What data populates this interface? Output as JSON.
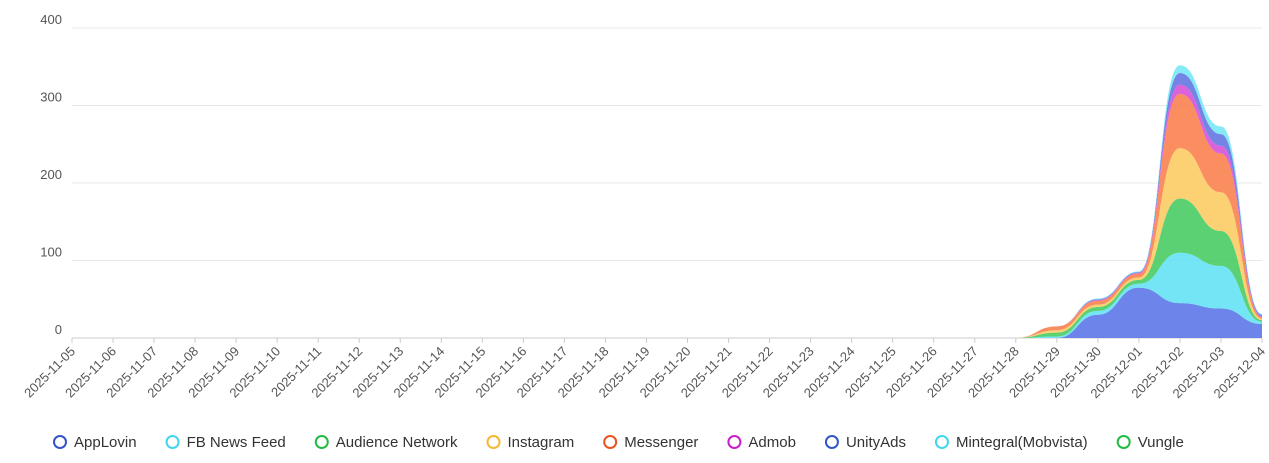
{
  "chart_data": {
    "type": "stacked-area",
    "categories": [
      "2025-11-05",
      "2025-11-06",
      "2025-11-07",
      "2025-11-08",
      "2025-11-09",
      "2025-11-10",
      "2025-11-11",
      "2025-11-12",
      "2025-11-13",
      "2025-11-14",
      "2025-11-15",
      "2025-11-16",
      "2025-11-17",
      "2025-11-18",
      "2025-11-19",
      "2025-11-20",
      "2025-11-21",
      "2025-11-22",
      "2025-11-23",
      "2025-11-24",
      "2025-11-25",
      "2025-11-26",
      "2025-11-27",
      "2025-11-28",
      "2025-11-29",
      "2025-11-30",
      "2025-12-01",
      "2025-12-02",
      "2025-12-03",
      "2025-12-04"
    ],
    "series": [
      {
        "name": "AppLovin",
        "color": "#5470e6",
        "values": [
          0,
          0,
          0,
          0,
          0,
          0,
          0,
          0,
          0,
          0,
          0,
          0,
          0,
          0,
          0,
          0,
          0,
          0,
          0,
          0,
          0,
          0,
          0,
          0,
          0,
          30,
          65,
          45,
          38,
          18
        ]
      },
      {
        "name": "FB News Feed",
        "color": "#5ce1f2",
        "values": [
          0,
          0,
          0,
          0,
          0,
          0,
          0,
          0,
          0,
          0,
          0,
          0,
          0,
          0,
          0,
          0,
          0,
          0,
          0,
          0,
          0,
          0,
          0,
          0,
          2,
          5,
          5,
          65,
          55,
          3
        ]
      },
      {
        "name": "Audience Network",
        "color": "#3ec95a",
        "values": [
          0,
          0,
          0,
          0,
          0,
          0,
          0,
          0,
          0,
          0,
          0,
          0,
          0,
          0,
          0,
          0,
          0,
          0,
          0,
          0,
          0,
          0,
          0,
          0,
          5,
          5,
          5,
          70,
          45,
          2
        ]
      },
      {
        "name": "Instagram",
        "color": "#fcc95a",
        "values": [
          0,
          0,
          0,
          0,
          0,
          0,
          0,
          0,
          0,
          0,
          0,
          0,
          0,
          0,
          0,
          0,
          0,
          0,
          0,
          0,
          0,
          0,
          0,
          0,
          3,
          3,
          3,
          65,
          50,
          2
        ]
      },
      {
        "name": "Messenger",
        "color": "#fa7a45",
        "values": [
          0,
          0,
          0,
          0,
          0,
          0,
          0,
          0,
          0,
          0,
          0,
          0,
          0,
          0,
          0,
          0,
          0,
          0,
          0,
          0,
          0,
          0,
          0,
          0,
          5,
          5,
          5,
          70,
          50,
          2
        ]
      },
      {
        "name": "Admob",
        "color": "#d346d3",
        "values": [
          0,
          0,
          0,
          0,
          0,
          0,
          0,
          0,
          0,
          0,
          0,
          0,
          0,
          0,
          0,
          0,
          0,
          0,
          0,
          0,
          0,
          0,
          0,
          0,
          0,
          1,
          1,
          12,
          10,
          1
        ]
      },
      {
        "name": "UnityAds",
        "color": "#5a6ee0",
        "values": [
          0,
          0,
          0,
          0,
          0,
          0,
          0,
          0,
          0,
          0,
          0,
          0,
          0,
          0,
          0,
          0,
          0,
          0,
          0,
          0,
          0,
          0,
          0,
          0,
          0,
          1,
          1,
          15,
          15,
          2
        ]
      },
      {
        "name": "Mintegral(Mobvista)",
        "color": "#6ee6f5",
        "values": [
          0,
          0,
          0,
          0,
          0,
          0,
          0,
          0,
          0,
          0,
          0,
          0,
          0,
          0,
          0,
          0,
          0,
          0,
          0,
          0,
          0,
          0,
          0,
          0,
          0,
          1,
          1,
          10,
          10,
          1
        ]
      },
      {
        "name": "Vungle",
        "color": "#33b84a",
        "values": [
          0,
          0,
          0,
          0,
          0,
          0,
          0,
          0,
          0,
          0,
          0,
          0,
          0,
          0,
          0,
          0,
          0,
          0,
          0,
          0,
          0,
          0,
          0,
          0,
          0,
          0,
          0,
          0,
          0,
          0
        ]
      }
    ],
    "legend_colors": [
      "#3355cc",
      "#3fd6ee",
      "#22bb44",
      "#f5b735",
      "#e8531f",
      "#c820c8",
      "#3355cc",
      "#3fd6ee",
      "#22bb44"
    ],
    "ylim": [
      0,
      400
    ],
    "yticks": [
      0,
      100,
      200,
      300,
      400
    ],
    "grid": true,
    "legend": "bottom"
  }
}
